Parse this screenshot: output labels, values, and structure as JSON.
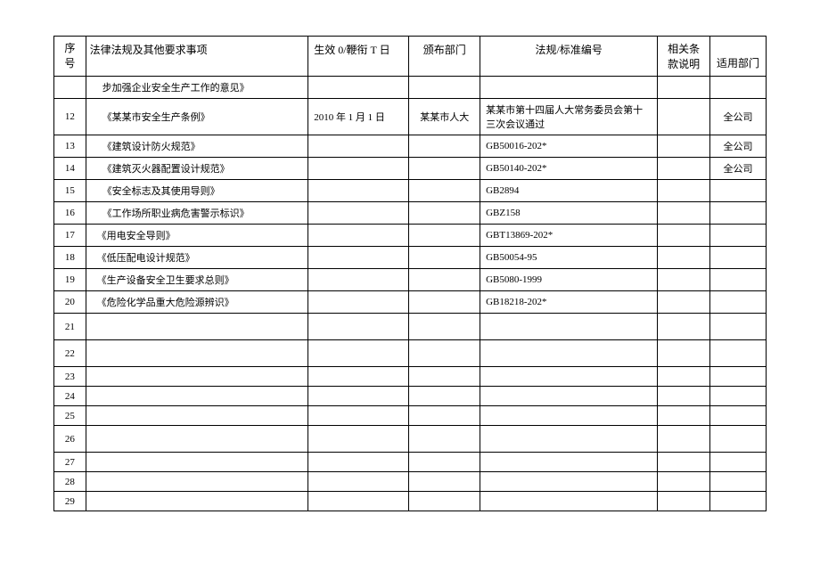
{
  "headers": {
    "seq": "序号",
    "law": "法律法规及其他要求事项",
    "date": "生效 0/鞭衔 T 日",
    "dept": "颁布部门",
    "code": "法规/标准编号",
    "clause": "相关条款说明",
    "apply": "适用部门"
  },
  "rows": [
    {
      "seq": "",
      "law": "步加强企业安全生产工作的意见》",
      "date": "",
      "dept": "",
      "code": "",
      "clause": "",
      "apply": "",
      "tall": false,
      "indent": true
    },
    {
      "seq": "12",
      "law": "《某某市安全生产条例》",
      "date": "2010 年 1 月 1 日",
      "dept": "某某市人大",
      "code": "某某市第十四届人大常务委员会第十三次会议通过",
      "clause": "",
      "apply": "全公司",
      "tall": true,
      "indent": true
    },
    {
      "seq": "13",
      "law": "《建筑设计防火规范》",
      "date": "",
      "dept": "",
      "code": "GB50016-202*",
      "clause": "",
      "apply": "全公司",
      "tall": false,
      "indent": true
    },
    {
      "seq": "14",
      "law": "《建筑灭火器配置设计规范》",
      "date": "",
      "dept": "",
      "code": "GB50140-202*",
      "clause": "",
      "apply": "全公司",
      "tall": false,
      "indent": true
    },
    {
      "seq": "15",
      "law": "《安全标志及其使用导则》",
      "date": "",
      "dept": "",
      "code": "GB2894",
      "clause": "",
      "apply": "",
      "tall": false,
      "indent": true
    },
    {
      "seq": "16",
      "law": "《工作场所职业病危害警示标识》",
      "date": "",
      "dept": "",
      "code": "GBZ158",
      "clause": "",
      "apply": "",
      "tall": false,
      "indent": true
    },
    {
      "seq": "17",
      "law": "《用电安全导则》",
      "date": "",
      "dept": "",
      "code": "GBT13869-202*",
      "clause": "",
      "apply": "",
      "tall": false,
      "indent2": true
    },
    {
      "seq": "18",
      "law": "《低压配电设计规范》",
      "date": "",
      "dept": "",
      "code": "GB50054-95",
      "clause": "",
      "apply": "",
      "tall": false,
      "indent2": true
    },
    {
      "seq": "19",
      "law": "《生产设备安全卫生要求总则》",
      "date": "",
      "dept": "",
      "code": "GB5080-1999",
      "clause": "",
      "apply": "",
      "tall": false,
      "indent2": true
    },
    {
      "seq": "20",
      "law": "《危险化学品重大危险源辨识》",
      "date": "",
      "dept": "",
      "code": "GB18218-202*",
      "clause": "",
      "apply": "",
      "tall": false,
      "indent2": true
    },
    {
      "seq": "21",
      "law": "",
      "date": "",
      "dept": "",
      "code": "",
      "clause": "",
      "apply": "",
      "emptytall": true
    },
    {
      "seq": "22",
      "law": "",
      "date": "",
      "dept": "",
      "code": "",
      "clause": "",
      "apply": "",
      "emptytall": true
    },
    {
      "seq": "23",
      "law": "",
      "date": "",
      "dept": "",
      "code": "",
      "clause": "",
      "apply": "",
      "tall": false
    },
    {
      "seq": "24",
      "law": "",
      "date": "",
      "dept": "",
      "code": "",
      "clause": "",
      "apply": "",
      "tall": false
    },
    {
      "seq": "25",
      "law": "",
      "date": "",
      "dept": "",
      "code": "",
      "clause": "",
      "apply": "",
      "tall": false
    },
    {
      "seq": "26",
      "law": "",
      "date": "",
      "dept": "",
      "code": "",
      "clause": "",
      "apply": "",
      "emptytall": true
    },
    {
      "seq": "27",
      "law": "",
      "date": "",
      "dept": "",
      "code": "",
      "clause": "",
      "apply": "",
      "tall": false
    },
    {
      "seq": "28",
      "law": "",
      "date": "",
      "dept": "",
      "code": "",
      "clause": "",
      "apply": "",
      "tall": false
    },
    {
      "seq": "29",
      "law": "",
      "date": "",
      "dept": "",
      "code": "",
      "clause": "",
      "apply": "",
      "tall": false
    }
  ]
}
